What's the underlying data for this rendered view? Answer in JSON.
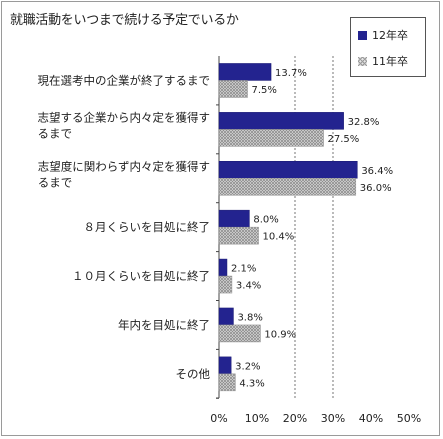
{
  "chart_data": {
    "type": "bar",
    "orientation": "horizontal",
    "title": "就職活動をいつまで続ける予定でいるか",
    "categories": [
      [
        "現在選考中の企業が終了するまで"
      ],
      [
        "志望する企業から内々定を獲得す",
        "るまで"
      ],
      [
        "志望度に関わらず内々定を獲得す",
        "るまで"
      ],
      [
        "８月くらいを目処に終了"
      ],
      [
        "１０月くらいを目処に終了"
      ],
      [
        "年内を目処に終了"
      ],
      [
        "その他"
      ]
    ],
    "series": [
      {
        "name": "12年卒",
        "values": [
          13.7,
          32.8,
          36.4,
          8.0,
          2.1,
          3.8,
          3.2
        ],
        "color": "#23238f"
      },
      {
        "name": "11年卒",
        "values": [
          7.5,
          27.5,
          36.0,
          10.4,
          3.4,
          10.9,
          4.3
        ],
        "color": "#a8a8a8"
      }
    ],
    "xlim": [
      0,
      50
    ],
    "xticks": [
      "0%",
      "10%",
      "20%",
      "30%",
      "40%",
      "50%"
    ],
    "value_suffix": "%",
    "grid": "dashed vertical at 20%, 30%",
    "legend_position": "top-right"
  }
}
